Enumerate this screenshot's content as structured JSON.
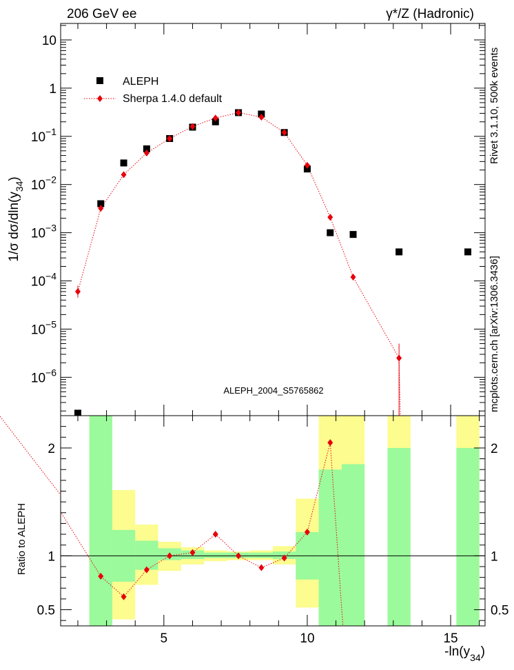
{
  "header": {
    "left": "206 GeV ee",
    "right": "γ*/Z (Hadronic)"
  },
  "side_labels": {
    "top": "Rivet 3.1.10,  500k events",
    "bottom": "mcplots.cern.ch [arXiv:1306.3436]"
  },
  "chart_data": [
    {
      "type": "scatter",
      "panel": "main",
      "ylabel": "1/σ  dσ/dln(y34)",
      "ylog": true,
      "ylim": [
        1.6e-07,
        22
      ],
      "xlim": [
        1.4,
        16.2
      ],
      "watermark": "ALEPH_2004_S5765862",
      "legend_position": "top-left",
      "x": [
        2.0,
        2.8,
        3.6,
        4.4,
        5.2,
        6.0,
        6.8,
        7.6,
        8.4,
        9.2,
        10.0,
        10.8,
        11.6,
        13.2,
        15.6
      ],
      "series": [
        {
          "name": "ALEPH",
          "style": "square",
          "color": "#000000",
          "values": [
            1.8e-07,
            0.004,
            0.028,
            0.055,
            0.09,
            0.155,
            0.2,
            0.31,
            0.29,
            0.12,
            0.021,
            0.001,
            0.00092,
            0.0004,
            0.0004
          ]
        },
        {
          "name": "Sherpa 1.4.0 default",
          "style": "diamond-dotted-line",
          "color": "#e8000b",
          "values": [
            6e-05,
            0.0032,
            0.016,
            0.045,
            0.09,
            0.16,
            0.24,
            0.31,
            0.25,
            0.12,
            0.025,
            0.0021,
            0.00012,
            2.5e-06,
            null
          ]
        }
      ],
      "yticks": [
        {
          "v": 1e-06,
          "mant": "10",
          "exp": "−6"
        },
        {
          "v": 1e-05,
          "mant": "10",
          "exp": "−5"
        },
        {
          "v": 0.0001,
          "mant": "10",
          "exp": "−4"
        },
        {
          "v": 0.001,
          "mant": "10",
          "exp": "−3"
        },
        {
          "v": 0.01,
          "mant": "10",
          "exp": "−2"
        },
        {
          "v": 0.1,
          "mant": "10",
          "exp": "−1"
        },
        {
          "v": 1,
          "mant": "1",
          "exp": ""
        },
        {
          "v": 10,
          "mant": "10",
          "exp": ""
        }
      ]
    },
    {
      "type": "line",
      "panel": "ratio",
      "ylabel": "Ratio to ALEPH",
      "xlabel": "-ln(y34)",
      "ylim": [
        0.35,
        2.3
      ],
      "xlim": [
        1.4,
        16.2
      ],
      "yticks": [
        0.5,
        1,
        2
      ],
      "xticks": [
        5,
        10,
        15
      ],
      "bands": [
        {
          "x0": 2.4,
          "x1": 3.2,
          "g0": 0.35,
          "g1": 2.3,
          "y0": 0.35,
          "y1": 2.3
        },
        {
          "x0": 3.2,
          "x1": 4.0,
          "g0": 0.76,
          "g1": 1.24,
          "y0": 0.41,
          "y1": 1.61
        },
        {
          "x0": 4.0,
          "x1": 4.8,
          "g0": 0.87,
          "g1": 1.14,
          "y0": 0.73,
          "y1": 1.29
        },
        {
          "x0": 4.8,
          "x1": 5.6,
          "g0": 0.96,
          "g1": 1.07,
          "y0": 0.86,
          "y1": 1.13
        },
        {
          "x0": 5.6,
          "x1": 6.4,
          "g0": 0.97,
          "g1": 1.05,
          "y0": 0.92,
          "y1": 1.08
        },
        {
          "x0": 6.4,
          "x1": 7.2,
          "g0": 0.98,
          "g1": 1.03,
          "y0": 0.95,
          "y1": 1.05
        },
        {
          "x0": 7.2,
          "x1": 8.0,
          "g0": 0.98,
          "g1": 1.03,
          "y0": 0.96,
          "y1": 1.04
        },
        {
          "x0": 8.0,
          "x1": 8.8,
          "g0": 0.98,
          "g1": 1.03,
          "y0": 0.96,
          "y1": 1.05
        },
        {
          "x0": 8.8,
          "x1": 9.6,
          "g0": 0.97,
          "g1": 1.04,
          "y0": 0.92,
          "y1": 1.09
        },
        {
          "x0": 9.6,
          "x1": 10.4,
          "g0": 0.78,
          "g1": 1.22,
          "y0": 0.52,
          "y1": 1.53
        },
        {
          "x0": 10.4,
          "x1": 11.2,
          "g0": 0.35,
          "g1": 1.8,
          "y0": 0.35,
          "y1": 2.3
        },
        {
          "x0": 11.2,
          "x1": 12.0,
          "g0": 0.35,
          "g1": 1.85,
          "y0": 0.35,
          "y1": 2.3
        },
        {
          "x0": 12.8,
          "x1": 13.6,
          "g0": 0.35,
          "g1": 2.0,
          "y0": 0.35,
          "y1": 2.3
        },
        {
          "x0": 15.2,
          "x1": 16.0,
          "g0": 0.35,
          "g1": 2.0,
          "y0": 0.35,
          "y1": 2.3
        }
      ],
      "ratio_x": [
        2.8,
        3.6,
        4.4,
        5.2,
        6.0,
        6.8,
        7.6,
        8.4,
        9.2,
        10.0,
        10.8
      ],
      "ratio_values": [
        0.81,
        0.62,
        0.87,
        1.0,
        1.03,
        1.2,
        1.0,
        0.89,
        0.98,
        1.22,
        2.05
      ]
    }
  ],
  "colors": {
    "green_band": "#9bfa9b",
    "yellow_band": "#fcfc8f",
    "model": "#e8000b",
    "watermark": "#a0a0a0"
  }
}
